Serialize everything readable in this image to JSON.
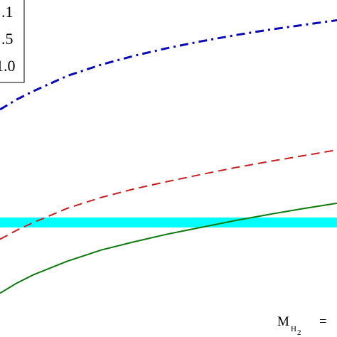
{
  "chart_data": {
    "type": "line",
    "title": "",
    "xlabel": "",
    "ylabel": "",
    "xlim": [
      0,
      1
    ],
    "ylim": [
      0,
      1
    ],
    "grid": false,
    "legend_position": "top-left",
    "legend_entries": [
      ".1",
      ".5",
      "1.0"
    ],
    "annotation": {
      "main": "M",
      "sub": "H",
      "subsub": "2",
      "suffix": "="
    },
    "series": [
      {
        "color": "#0a0ab4",
        "style": "dash-dot",
        "x": [
          0,
          0.05,
          0.1,
          0.2,
          0.3,
          0.4,
          0.5,
          0.6,
          0.7,
          0.8,
          0.9,
          1.0
        ],
        "y": [
          0.675,
          0.705,
          0.73,
          0.775,
          0.808,
          0.835,
          0.858,
          0.878,
          0.896,
          0.912,
          0.926,
          0.94
        ]
      },
      {
        "color": "#c81e1e",
        "style": "dashed",
        "x": [
          0,
          0.05,
          0.1,
          0.2,
          0.3,
          0.4,
          0.5,
          0.6,
          0.7,
          0.8,
          0.9,
          1.0
        ],
        "y": [
          0.29,
          0.317,
          0.34,
          0.382,
          0.414,
          0.44,
          0.462,
          0.483,
          0.503,
          0.521,
          0.538,
          0.555
        ]
      },
      {
        "color": "#0e7a0e",
        "style": "solid",
        "x": [
          0,
          0.05,
          0.1,
          0.2,
          0.3,
          0.4,
          0.5,
          0.6,
          0.7,
          0.8,
          0.9,
          1.0
        ],
        "y": [
          0.13,
          0.16,
          0.185,
          0.225,
          0.258,
          0.283,
          0.306,
          0.326,
          0.346,
          0.364,
          0.381,
          0.397
        ]
      }
    ],
    "band": {
      "color": "#00ffff",
      "y": 0.34
    }
  }
}
